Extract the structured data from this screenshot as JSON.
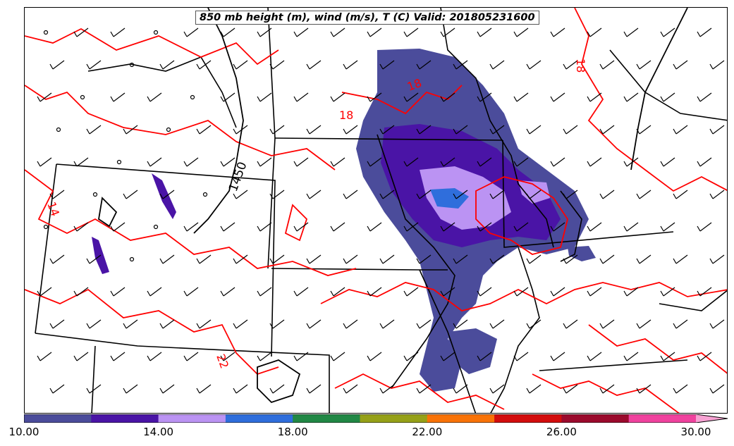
{
  "title": "850 mb height (m), wind (m/s), T (C) Valid: 201805231600",
  "contour_labels": {
    "height": [
      "1450"
    ],
    "temperature": [
      "18",
      "18",
      "18",
      "14",
      "22"
    ]
  },
  "colorbar": {
    "colors": [
      "#4b4c9b",
      "#4a14a6",
      "#bb93f3",
      "#2f6edc",
      "#218845",
      "#96a118",
      "#f97307",
      "#d30d0d",
      "#9b0a2d",
      "#f0429e"
    ],
    "extend_color": "#f7a2d3",
    "ticks": [
      "10.00",
      "14.00",
      "18.00",
      "22.00",
      "26.00",
      "30.00"
    ],
    "min": 10,
    "max": 31
  },
  "colors": {
    "height_contour": "#000000",
    "temperature_contour": "#ff0000",
    "state_borders": "#000000"
  }
}
